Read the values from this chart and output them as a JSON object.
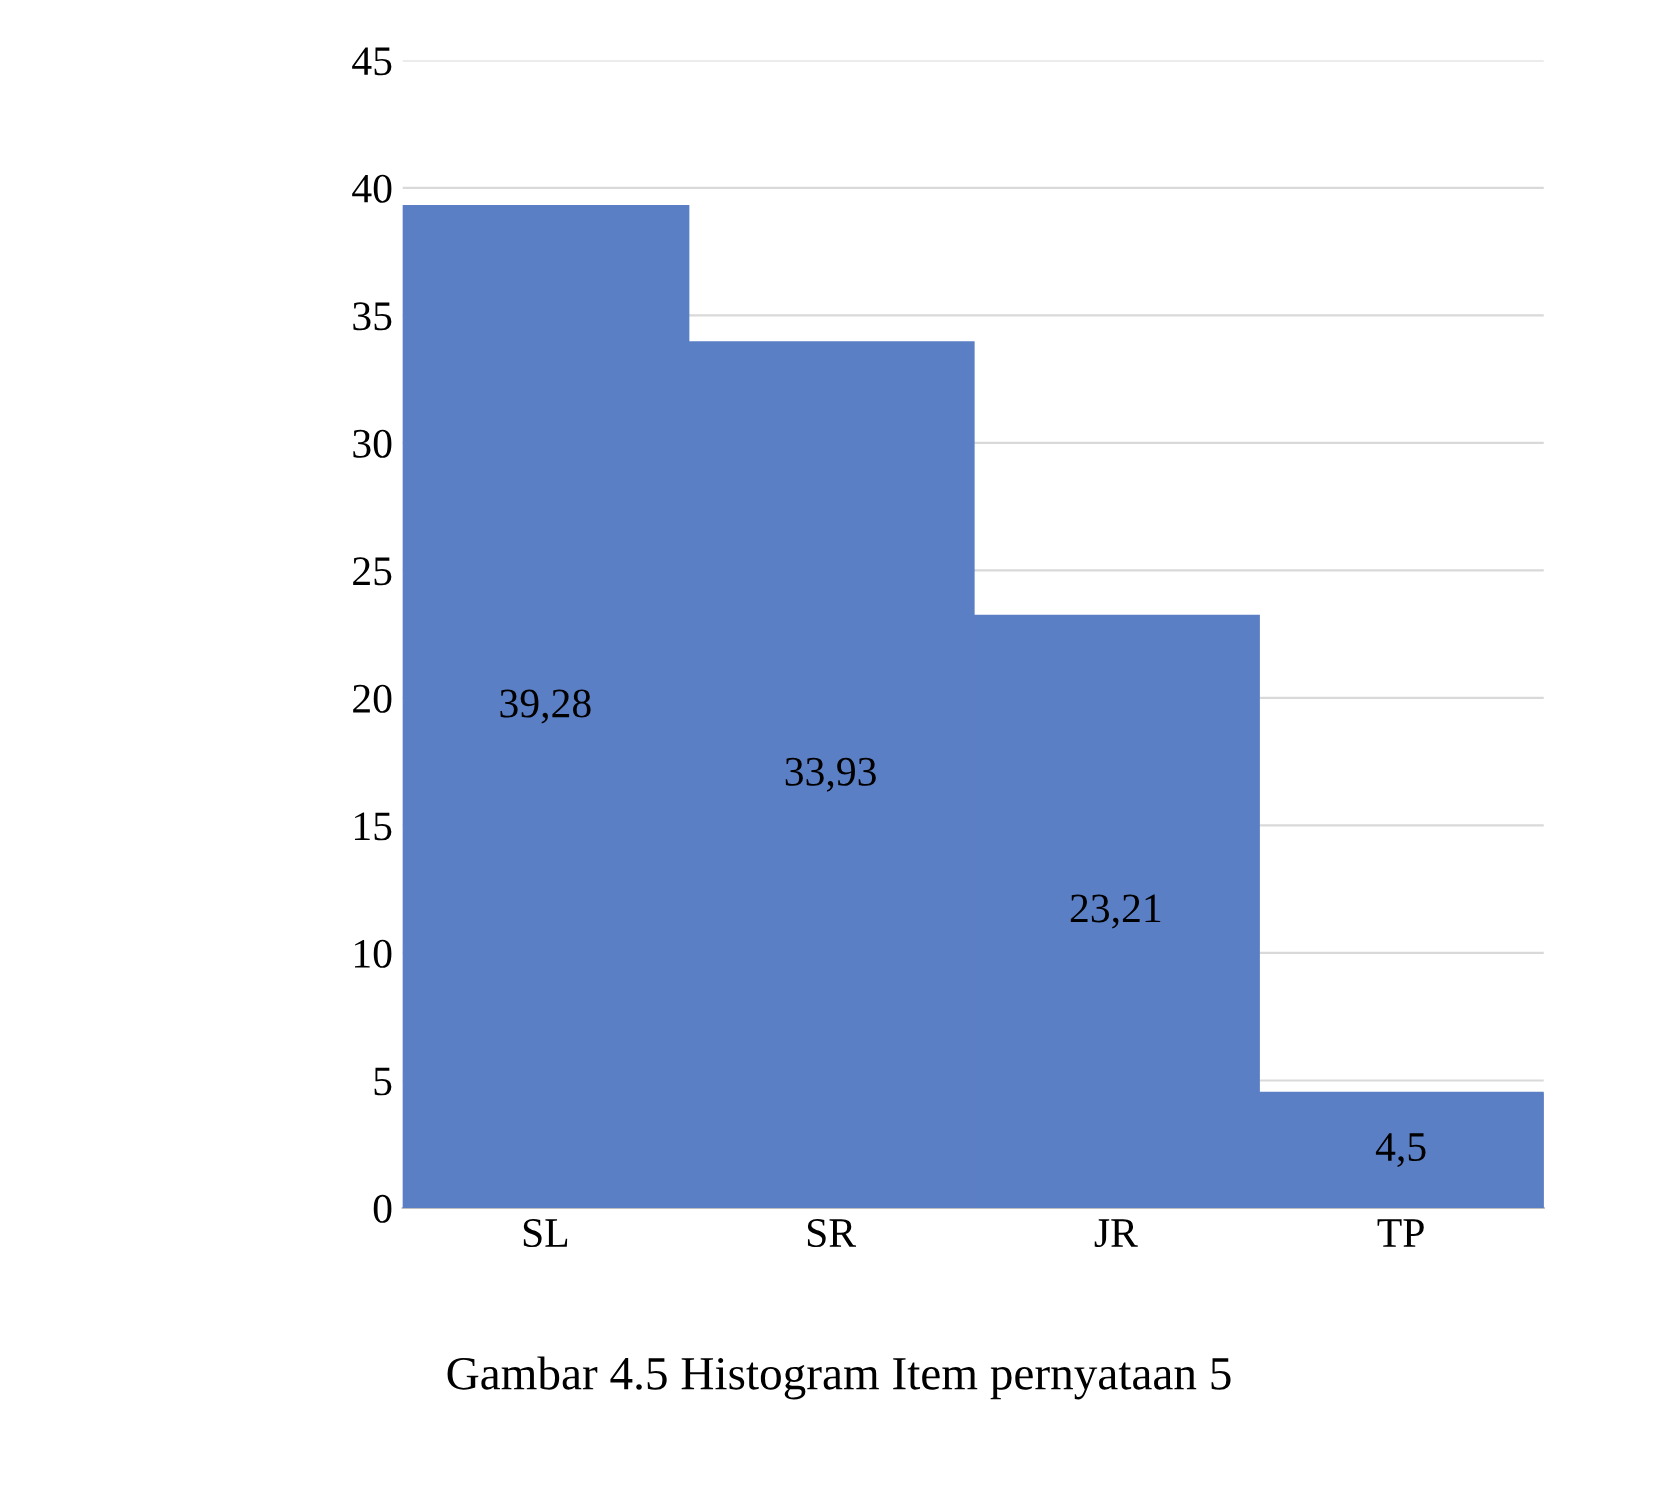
{
  "chart_data": {
    "type": "bar",
    "categories": [
      "SL",
      "SR",
      "JR",
      "TP"
    ],
    "values": [
      39.28,
      33.93,
      23.21,
      4.5
    ],
    "value_labels": [
      "39,28",
      "33,93",
      "23,21",
      "4,5"
    ],
    "color": "#5b7fc4",
    "ylim": [
      0,
      45
    ],
    "yticks": [
      0,
      5,
      10,
      15,
      20,
      25,
      30,
      35,
      40,
      45
    ],
    "grid": "y",
    "annotations": [
      "Gambar 4.5 Histogram Item pernyataan 5"
    ]
  }
}
